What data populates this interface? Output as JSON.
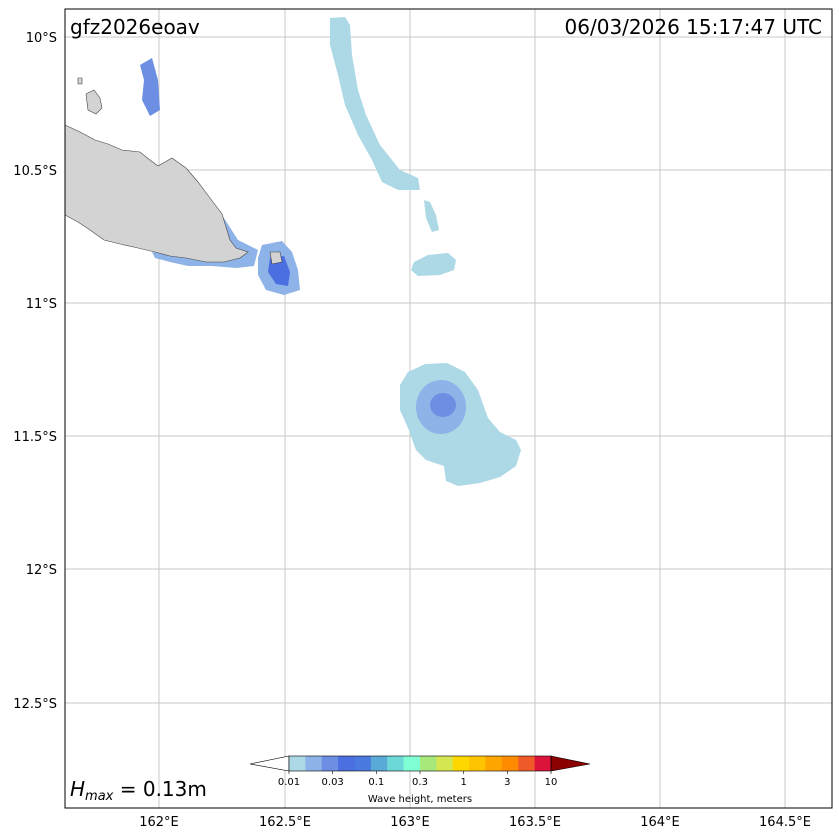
{
  "header": {
    "event_id": "gfz2026eoav",
    "timestamp": "06/03/2026 15:17:47 UTC"
  },
  "map": {
    "lon_ticks": [
      "162°E",
      "162.5°E",
      "163°E",
      "163.5°E",
      "164°E",
      "164.5°E"
    ],
    "lat_ticks": [
      "10°S",
      "10.5°S",
      "11°S",
      "11.5°S",
      "12°S",
      "12.5°S"
    ],
    "land_color": "#d3d3d3",
    "grid": true
  },
  "hmax": {
    "symbol": "H",
    "subscript": "max",
    "value_text": " = 0.13m"
  },
  "colorbar": {
    "ticks": [
      "0.01",
      "0.03",
      "0.1",
      "0.3",
      "1",
      "3",
      "10"
    ],
    "label": "Wave height, meters",
    "colors": [
      "#add8e6",
      "#8db3e8",
      "#6d8fe3",
      "#4b6fe0",
      "#4a7ae0",
      "#5aaad8",
      "#6ed8d8",
      "#7fffd4",
      "#a8e87a",
      "#d4e650",
      "#ffd700",
      "#ffc400",
      "#ffa500",
      "#ff8c00",
      "#f05a28",
      "#dc143c"
    ],
    "under_color": "#ffffff",
    "over_color": "#8b0000"
  }
}
